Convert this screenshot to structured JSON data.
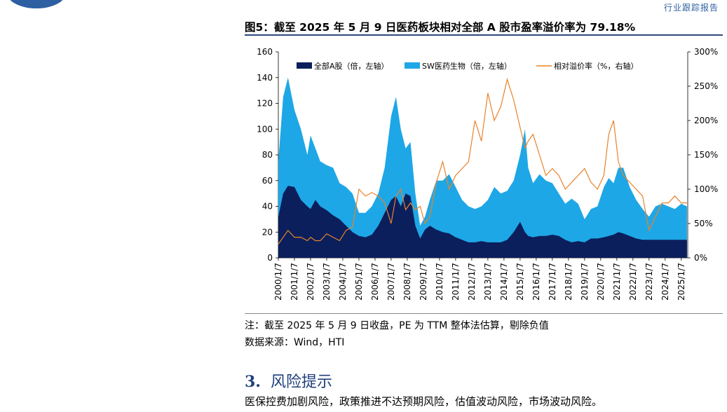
{
  "header": {
    "tag": "行业跟踪报告"
  },
  "figure": {
    "title": "图5：截至 2025 年 5 月 9 日医药板块相对全部 A 股市盈率溢价率为 79.18%",
    "note": "注：截至 2025 年 5 月 9 日收盘，PE 为 TTM 整体法估算，剔除负值",
    "source": "数据来源：Wind，HTI"
  },
  "section": {
    "number": "3.",
    "title": "风险提示"
  },
  "body": {
    "text": "医保控费加剧风险，政策推进不达预期风险，估值波动风险，市场波动风险。"
  },
  "colors": {
    "all_a": "#0b1f5c",
    "sw_pharma": "#1ea7e6",
    "premium": "#e8822a",
    "rule": "#2e4a7a"
  },
  "chart_data": {
    "type": "area",
    "x_ticks": [
      "2000/1/7",
      "2001/1/7",
      "2002/1/7",
      "2003/1/7",
      "2004/1/7",
      "2005/1/7",
      "2006/1/7",
      "2007/1/7",
      "2008/1/7",
      "2009/1/7",
      "2010/1/7",
      "2011/1/7",
      "2012/1/7",
      "2013/1/7",
      "2014/1/7",
      "2015/1/7",
      "2016/1/7",
      "2017/1/7",
      "2018/1/7",
      "2019/1/7",
      "2020/1/7",
      "2021/1/7",
      "2022/1/7",
      "2023/1/7",
      "2024/1/7",
      "2025/1/7"
    ],
    "y_left": {
      "range": [
        0,
        160
      ],
      "ticks": [
        "0",
        "20",
        "40",
        "60",
        "80",
        "100",
        "120",
        "140",
        "160"
      ]
    },
    "y_right": {
      "range": [
        0,
        300
      ],
      "ticks": [
        "0%",
        "50%",
        "100%",
        "150%",
        "200%",
        "250%",
        "300%"
      ]
    },
    "legend": {
      "placement": "top"
    },
    "x": [
      2000.0,
      2000.3,
      2000.6,
      2001.0,
      2001.4,
      2001.8,
      2002.0,
      2002.3,
      2002.6,
      2003.0,
      2003.4,
      2003.8,
      2004.2,
      2004.6,
      2005.0,
      2005.4,
      2005.8,
      2006.2,
      2006.6,
      2007.0,
      2007.3,
      2007.6,
      2007.9,
      2008.2,
      2008.5,
      2008.8,
      2009.1,
      2009.4,
      2009.8,
      2010.2,
      2010.6,
      2011.0,
      2011.4,
      2011.8,
      2012.2,
      2012.6,
      2013.0,
      2013.4,
      2013.8,
      2014.2,
      2014.6,
      2015.0,
      2015.3,
      2015.5,
      2015.8,
      2016.2,
      2016.6,
      2017.0,
      2017.4,
      2017.8,
      2018.2,
      2018.6,
      2019.0,
      2019.4,
      2019.8,
      2020.2,
      2020.5,
      2020.8,
      2021.1,
      2021.4,
      2021.8,
      2022.2,
      2022.6,
      2023.0,
      2023.4,
      2023.8,
      2024.2,
      2024.6,
      2025.0,
      2025.35
    ],
    "series": [
      {
        "name": "SW医药生物（倍，左轴）",
        "axis": "left",
        "values": [
          75,
          125,
          140,
          115,
          100,
          80,
          95,
          85,
          75,
          72,
          70,
          58,
          55,
          50,
          35,
          35,
          40,
          50,
          70,
          110,
          125,
          100,
          85,
          90,
          50,
          25,
          32,
          45,
          60,
          60,
          65,
          55,
          45,
          40,
          38,
          40,
          45,
          55,
          50,
          52,
          60,
          80,
          100,
          70,
          58,
          65,
          60,
          58,
          50,
          42,
          46,
          42,
          30,
          38,
          40,
          55,
          62,
          58,
          70,
          70,
          55,
          45,
          38,
          32,
          40,
          42,
          40,
          38,
          42,
          40
        ]
      },
      {
        "name": "全部A股（倍，左轴）",
        "axis": "left",
        "values": [
          32,
          50,
          56,
          55,
          45,
          40,
          38,
          45,
          40,
          37,
          33,
          30,
          25,
          20,
          17,
          16,
          18,
          25,
          35,
          45,
          48,
          40,
          50,
          48,
          25,
          15,
          22,
          25,
          22,
          20,
          19,
          16,
          14,
          12,
          12,
          13,
          12,
          12,
          12,
          14,
          20,
          28,
          20,
          17,
          16,
          17,
          17,
          18,
          17,
          14,
          12,
          13,
          12,
          15,
          15,
          16,
          17,
          18,
          20,
          19,
          17,
          15,
          14,
          14,
          14,
          14,
          14,
          14,
          14,
          14
        ]
      },
      {
        "name": "相对溢价率（%，右轴）",
        "axis": "right",
        "values": [
          20,
          30,
          40,
          30,
          30,
          25,
          30,
          25,
          25,
          35,
          30,
          25,
          40,
          45,
          100,
          90,
          95,
          90,
          80,
          50,
          90,
          100,
          70,
          80,
          70,
          75,
          50,
          60,
          110,
          140,
          100,
          120,
          130,
          140,
          200,
          170,
          240,
          200,
          220,
          260,
          230,
          190,
          160,
          170,
          180,
          150,
          120,
          130,
          120,
          100,
          110,
          120,
          130,
          110,
          100,
          120,
          180,
          200,
          140,
          120,
          110,
          100,
          90,
          40,
          60,
          80,
          80,
          90,
          80,
          80
        ]
      }
    ]
  }
}
